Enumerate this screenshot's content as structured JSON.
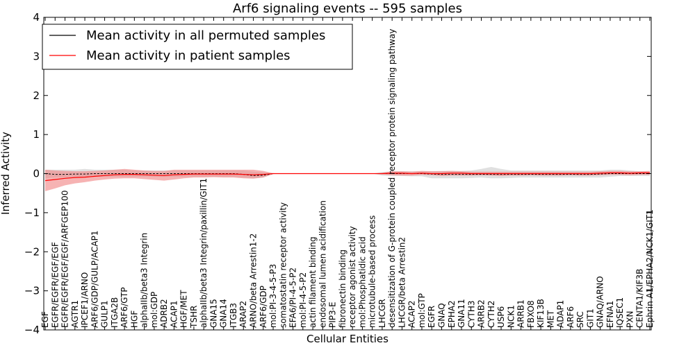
{
  "chart_data": {
    "type": "line",
    "title": "Arf6 signaling events -- 595 samples",
    "xlabel": "Cellular Entities",
    "ylabel": "Inferred Activity",
    "ylim": [
      -4,
      4
    ],
    "yticks": [
      4,
      3,
      2,
      1,
      0,
      -1,
      -2,
      -3,
      -4
    ],
    "ytick_labels": [
      "4",
      "3",
      "2",
      "1",
      "0",
      "−1",
      "−2",
      "−3",
      "−4"
    ],
    "legend": {
      "placement": "top-left",
      "entries": [
        {
          "label": "Mean activity in all permuted samples",
          "color": "#000000"
        },
        {
          "label": "Mean activity in patient samples",
          "color": "#ff0000"
        }
      ]
    },
    "colors": {
      "patient_line": "#ff0000",
      "patient_band": "#f08080",
      "permuted_line": "#000000",
      "permuted_band": "#bbbbbb"
    },
    "categories": [
      "EGF",
      "EGFR/EGFR/EGF/EGF",
      "EGFR/EGFR/EGF/EGF/ARFGEP100",
      "AGTR1",
      "IPCEF1/ARNO",
      "ARF6/GDP/GULP/ACAP1",
      "GULP1",
      "ITGA2B",
      "ARF6/GTP",
      "HGF",
      "alphaIIb/beta3 Integrin",
      "mol:GDP",
      "ADRB2",
      "ACAP1",
      "HGF/MET",
      "TSHR",
      "alphaIIb/beta3 Integrin/paxillin/GIT1",
      "GNA15",
      "GNA14",
      "ITGB3",
      "ARAP2",
      "ARNO/beta Arrestin1-2",
      "ARF6/GDP",
      "mol:PI-3-4-5-P3",
      "somatostatin receptor activity",
      "EFA6/PI-4-5-P2",
      "mol:PI-4-5-P2",
      "actin filament binding",
      "endosomal lumen acidification",
      "PIP3-E",
      "fibronectin binding",
      "receptor agonist activity",
      "mol:Phosphatidic acid",
      "microtubule-based process",
      "LHCGR",
      "desensitization of G-protein coupled receptor protein signaling pathway",
      "LHCGR/beta Arrestin2",
      "ACAP2",
      "mol:GTP",
      "EGFR",
      "GNAQ",
      "EPHA2",
      "GNA11",
      "CYTH3",
      "ARRB2",
      "CYTH2",
      "USP6",
      "NCK1",
      "ARRB1",
      "FBXO8",
      "KIF13B",
      "MET",
      "ADAP1",
      "ARF6",
      "SRC",
      "GIT1",
      "GNAQ/ARNO",
      "EFNA1",
      "IQSEC1",
      "PXN",
      "CENTA1/KIF3B",
      "Ephrin A1/EPHA2/NCK1/GIT1"
    ],
    "series": [
      {
        "name": "Mean activity in patient samples",
        "values": [
          -0.18,
          -0.15,
          -0.12,
          -0.1,
          -0.09,
          -0.07,
          -0.05,
          -0.03,
          -0.02,
          -0.02,
          -0.03,
          -0.04,
          -0.05,
          -0.03,
          -0.02,
          -0.01,
          -0.01,
          -0.01,
          -0.01,
          -0.01,
          -0.02,
          -0.03,
          -0.02,
          0.0,
          0.0,
          0.0,
          0.0,
          0.0,
          0.0,
          0.0,
          0.0,
          0.0,
          0.0,
          0.0,
          0.0,
          0.01,
          0.01,
          0.0,
          0.01,
          0.0,
          0.0,
          0.01,
          0.01,
          0.0,
          0.0,
          0.0,
          0.0,
          0.0,
          0.0,
          0.0,
          0.0,
          0.0,
          0.0,
          0.0,
          0.0,
          0.0,
          0.01,
          0.02,
          0.02,
          0.01,
          0.02,
          0.02
        ],
        "band_low": [
          -0.45,
          -0.38,
          -0.3,
          -0.25,
          -0.22,
          -0.18,
          -0.15,
          -0.13,
          -0.12,
          -0.12,
          -0.14,
          -0.16,
          -0.18,
          -0.15,
          -0.12,
          -0.1,
          -0.1,
          -0.09,
          -0.1,
          -0.1,
          -0.12,
          -0.13,
          -0.1,
          -0.01,
          0.0,
          0.0,
          0.0,
          0.0,
          0.0,
          0.0,
          0.0,
          0.0,
          0.0,
          0.0,
          -0.02,
          -0.04,
          -0.05,
          -0.05,
          -0.03,
          -0.04,
          -0.06,
          -0.05,
          -0.05,
          -0.05,
          -0.04,
          -0.05,
          -0.06,
          -0.05,
          -0.05,
          -0.04,
          -0.05,
          -0.05,
          -0.05,
          -0.04,
          -0.05,
          -0.05,
          -0.04,
          -0.03,
          -0.03,
          -0.04,
          -0.03,
          -0.03
        ],
        "band_high": [
          0.1,
          0.08,
          0.07,
          0.06,
          0.06,
          0.07,
          0.08,
          0.1,
          0.12,
          0.1,
          0.08,
          0.07,
          0.07,
          0.1,
          0.1,
          0.1,
          0.1,
          0.1,
          0.1,
          0.1,
          0.1,
          0.1,
          0.07,
          0.01,
          0.0,
          0.0,
          0.0,
          0.0,
          0.0,
          0.0,
          0.0,
          0.0,
          0.0,
          0.0,
          0.02,
          0.06,
          0.06,
          0.05,
          0.07,
          0.06,
          0.06,
          0.07,
          0.06,
          0.05,
          0.05,
          0.05,
          0.05,
          0.05,
          0.05,
          0.05,
          0.05,
          0.05,
          0.05,
          0.05,
          0.05,
          0.05,
          0.06,
          0.07,
          0.07,
          0.06,
          0.06,
          0.07
        ]
      },
      {
        "name": "Mean activity in all permuted samples",
        "values": [
          0.0,
          -0.02,
          -0.02,
          -0.01,
          -0.01,
          0.0,
          0.0,
          0.0,
          0.0,
          0.0,
          0.0,
          0.0,
          0.0,
          0.0,
          0.0,
          0.0,
          0.0,
          0.0,
          0.0,
          0.0,
          -0.02,
          -0.05,
          -0.04,
          0.0,
          0.0,
          0.0,
          0.0,
          0.0,
          0.0,
          0.0,
          0.0,
          0.0,
          0.0,
          0.0,
          0.0,
          0.0,
          0.0,
          0.0,
          0.0,
          -0.01,
          -0.02,
          -0.02,
          -0.02,
          -0.02,
          -0.02,
          -0.02,
          -0.02,
          -0.02,
          -0.02,
          -0.02,
          -0.02,
          -0.02,
          -0.02,
          -0.02,
          -0.02,
          -0.02,
          -0.01,
          0.0,
          0.0,
          0.0,
          0.0,
          0.0
        ],
        "band_low": [
          -0.12,
          -0.1,
          -0.1,
          -0.08,
          -0.08,
          -0.08,
          -0.08,
          -0.08,
          -0.08,
          -0.08,
          -0.08,
          -0.08,
          -0.08,
          -0.08,
          -0.08,
          -0.08,
          -0.08,
          -0.08,
          -0.08,
          -0.08,
          -0.1,
          -0.12,
          -0.1,
          -0.01,
          0.0,
          0.0,
          0.0,
          0.0,
          0.0,
          0.0,
          0.0,
          0.0,
          0.0,
          0.0,
          -0.05,
          -0.06,
          -0.06,
          -0.07,
          -0.07,
          -0.12,
          -0.12,
          -0.12,
          -0.12,
          -0.11,
          -0.1,
          -0.12,
          -0.12,
          -0.11,
          -0.1,
          -0.1,
          -0.1,
          -0.1,
          -0.1,
          -0.1,
          -0.1,
          -0.1,
          -0.1,
          -0.08,
          -0.06,
          -0.06,
          -0.06,
          -0.06
        ],
        "band_high": [
          0.1,
          0.1,
          0.1,
          0.1,
          0.12,
          0.1,
          0.1,
          0.1,
          0.1,
          0.08,
          0.08,
          0.08,
          0.08,
          0.08,
          0.08,
          0.08,
          0.08,
          0.08,
          0.08,
          0.08,
          0.08,
          0.05,
          0.03,
          0.01,
          0.0,
          0.0,
          0.0,
          0.0,
          0.0,
          0.0,
          0.0,
          0.0,
          0.0,
          0.0,
          0.04,
          0.06,
          0.06,
          0.06,
          0.06,
          0.06,
          0.07,
          0.07,
          0.07,
          0.08,
          0.12,
          0.17,
          0.12,
          0.08,
          0.08,
          0.08,
          0.08,
          0.08,
          0.08,
          0.08,
          0.08,
          0.08,
          0.08,
          0.1,
          0.1,
          0.08,
          0.06,
          0.06
        ]
      }
    ]
  }
}
